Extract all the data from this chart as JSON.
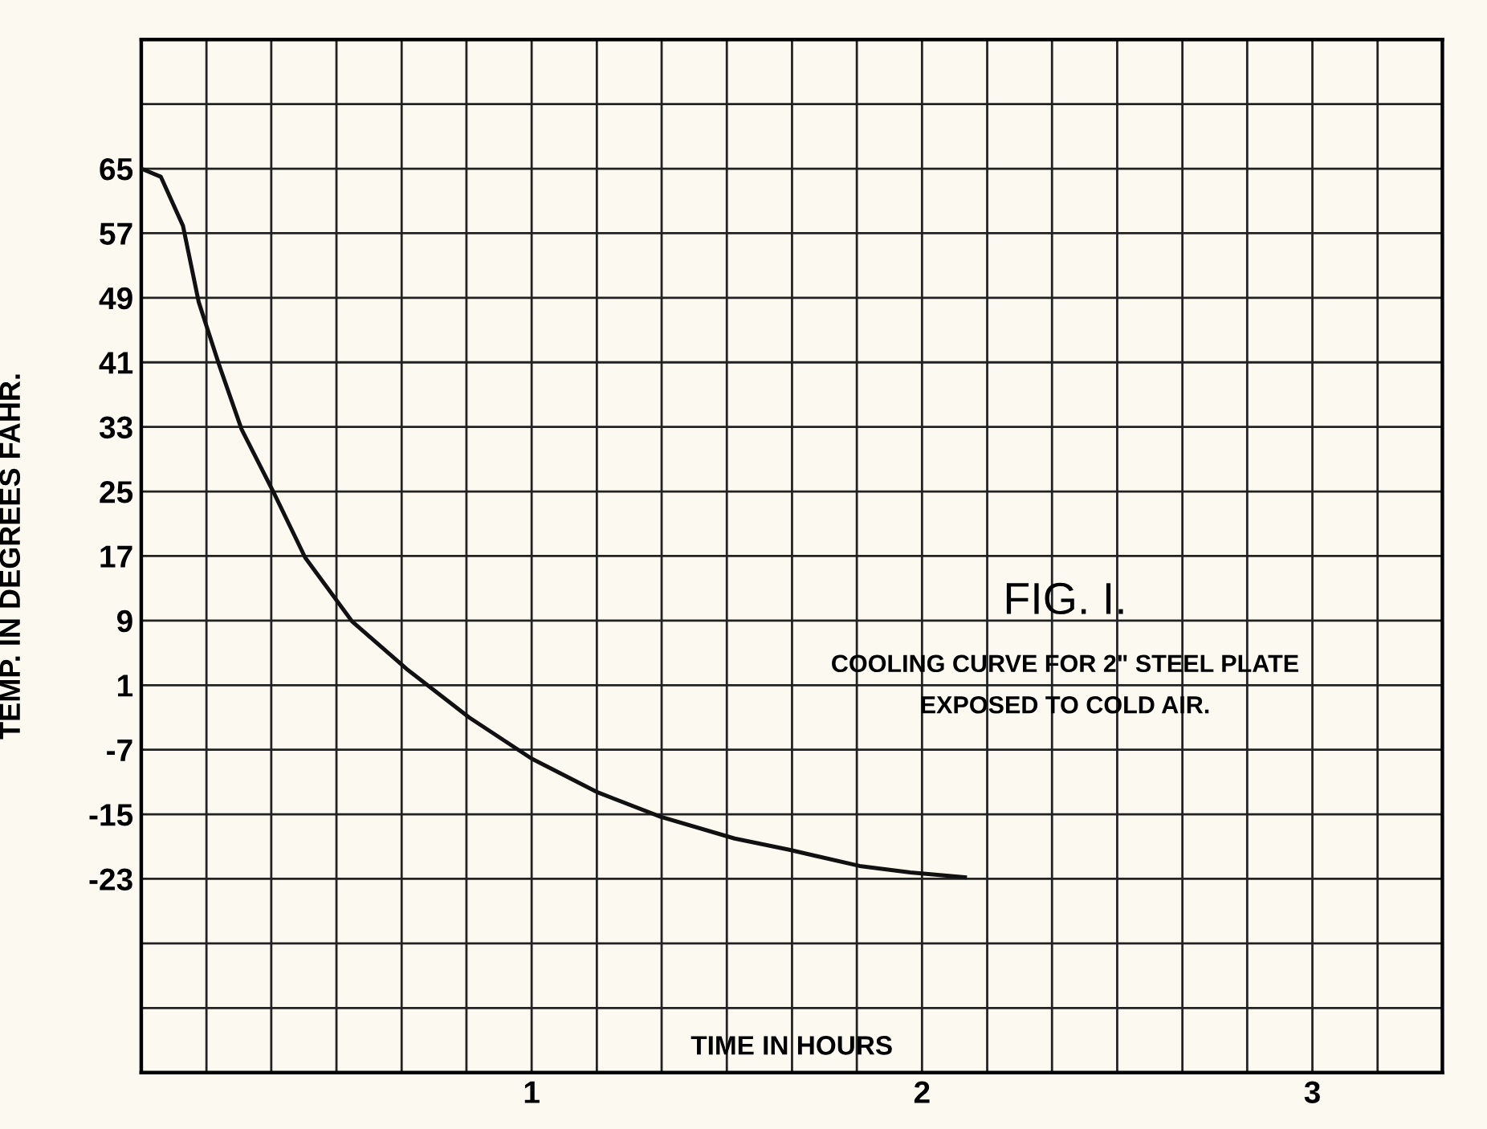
{
  "chart_data": {
    "type": "line",
    "title": "FIG. I.",
    "xlabel": "TIME IN HOURS",
    "ylabel": "TEMP. IN DEGREES FAHR.",
    "annotations": [
      "COOLING CURVE FOR 2\" STEEL PLATE",
      "EXPOSED TO COLD AIR."
    ],
    "series": [
      {
        "color": "#111111",
        "x": [
          0,
          0.05,
          0.107,
          0.147,
          0.2,
          0.257,
          0.34,
          0.42,
          0.54,
          0.68,
          0.84,
          1.0,
          1.17,
          1.33,
          1.52,
          1.66,
          1.84,
          1.97,
          2.11
        ],
        "values": [
          65,
          64,
          57.9,
          48.5,
          40.6,
          32.7,
          24.8,
          16.8,
          8.9,
          3.0,
          -3,
          -8.1,
          -12.3,
          -15.3,
          -18,
          -19.4,
          -21.4,
          -22.2,
          -22.8
        ]
      }
    ],
    "xlim": [
      0,
      3.333
    ],
    "ylim": [
      -47,
      81
    ],
    "xticks": [
      {
        "value": 0.167,
        "label": null
      },
      {
        "value": 0.333,
        "label": null
      },
      {
        "value": 0.5,
        "label": null
      },
      {
        "value": 0.667,
        "label": null
      },
      {
        "value": 0.833,
        "label": null
      },
      1,
      {
        "value": 1.167,
        "label": null
      },
      {
        "value": 1.333,
        "label": null
      },
      {
        "value": 1.5,
        "label": null
      },
      {
        "value": 1.667,
        "label": null
      },
      {
        "value": 1.833,
        "label": null
      },
      2,
      {
        "value": 2.167,
        "label": null
      },
      {
        "value": 2.333,
        "label": null
      },
      {
        "value": 2.5,
        "label": null
      },
      {
        "value": 2.667,
        "label": null
      },
      {
        "value": 2.833,
        "label": null
      },
      3,
      {
        "value": 3.167,
        "label": null
      }
    ],
    "yticks": [
      {
        "value": -39,
        "label": null
      },
      {
        "value": -31,
        "label": null
      },
      -23,
      -15,
      -7,
      1,
      9,
      17,
      25,
      33,
      41,
      49,
      57,
      65,
      {
        "value": 73,
        "label": null
      }
    ],
    "grid": true,
    "marker": "none",
    "line_style": "solid"
  }
}
